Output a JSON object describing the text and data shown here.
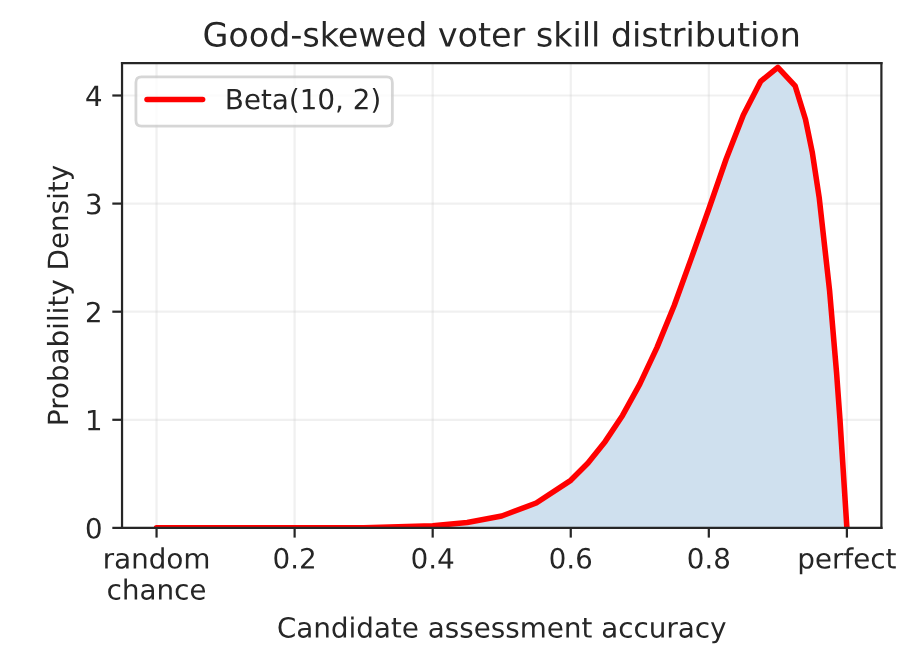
{
  "chart_data": {
    "type": "area",
    "title": "Good-skewed voter skill distribution",
    "xlabel": "Candidate assessment accuracy",
    "ylabel": "Probability Density",
    "x": [
      0,
      0.1,
      0.2,
      0.3,
      0.35,
      0.4,
      0.45,
      0.5,
      0.55,
      0.6,
      0.625,
      0.65,
      0.675,
      0.7,
      0.725,
      0.75,
      0.775,
      0.8,
      0.825,
      0.85,
      0.875,
      0.9,
      0.925,
      0.94,
      0.95,
      0.96,
      0.975,
      0.985,
      0.99,
      1.0
    ],
    "series": [
      {
        "name": "Beta(10, 2)",
        "color": "#ff0000",
        "colors": [
          "#cfe0ee",
          "#cfe0ee",
          "#cfe0ee",
          "#cfe0ee",
          "#cfe0ee",
          "#cfe0ee",
          "#cfe0ee",
          "#cfe0ee",
          "#cfe0ee",
          "#cfe0ee",
          "#cfe0ee",
          "#cfe0ee",
          "#cfe0ee",
          "#cfe0ee",
          "#cfe0ee",
          "#cfe0ee",
          "#cfe0ee",
          "#cfe0ee",
          "#cfe0ee",
          "#cfe0ee",
          "#cfe0ee",
          "#cfe0ee",
          "#cfe0ee",
          "#cfe0ee",
          "#cfe0ee",
          "#cfe0ee",
          "#cfe0ee",
          "#cfe0ee",
          "#cfe0ee",
          "#cfe0ee"
        ],
        "values": [
          0,
          0,
          0,
          0,
          0.01,
          0.02,
          0.05,
          0.11,
          0.23,
          0.44,
          0.6,
          0.8,
          1.04,
          1.33,
          1.67,
          2.06,
          2.5,
          2.95,
          3.41,
          3.82,
          4.13,
          4.26,
          4.09,
          3.78,
          3.47,
          3.05,
          2.19,
          1.44,
          1.0,
          0
        ]
      }
    ],
    "xlim": [
      -0.05,
      1.05
    ],
    "xticks": [
      {
        "value": 0,
        "label": "random\nchance"
      },
      0.2,
      0.4,
      0.6,
      0.8,
      {
        "value": 1.0,
        "label": "perfect"
      }
    ],
    "ylim": [
      0,
      4.3
    ],
    "yticks": [
      0,
      1,
      2,
      3,
      4
    ],
    "grid": true,
    "legend": "top left"
  }
}
